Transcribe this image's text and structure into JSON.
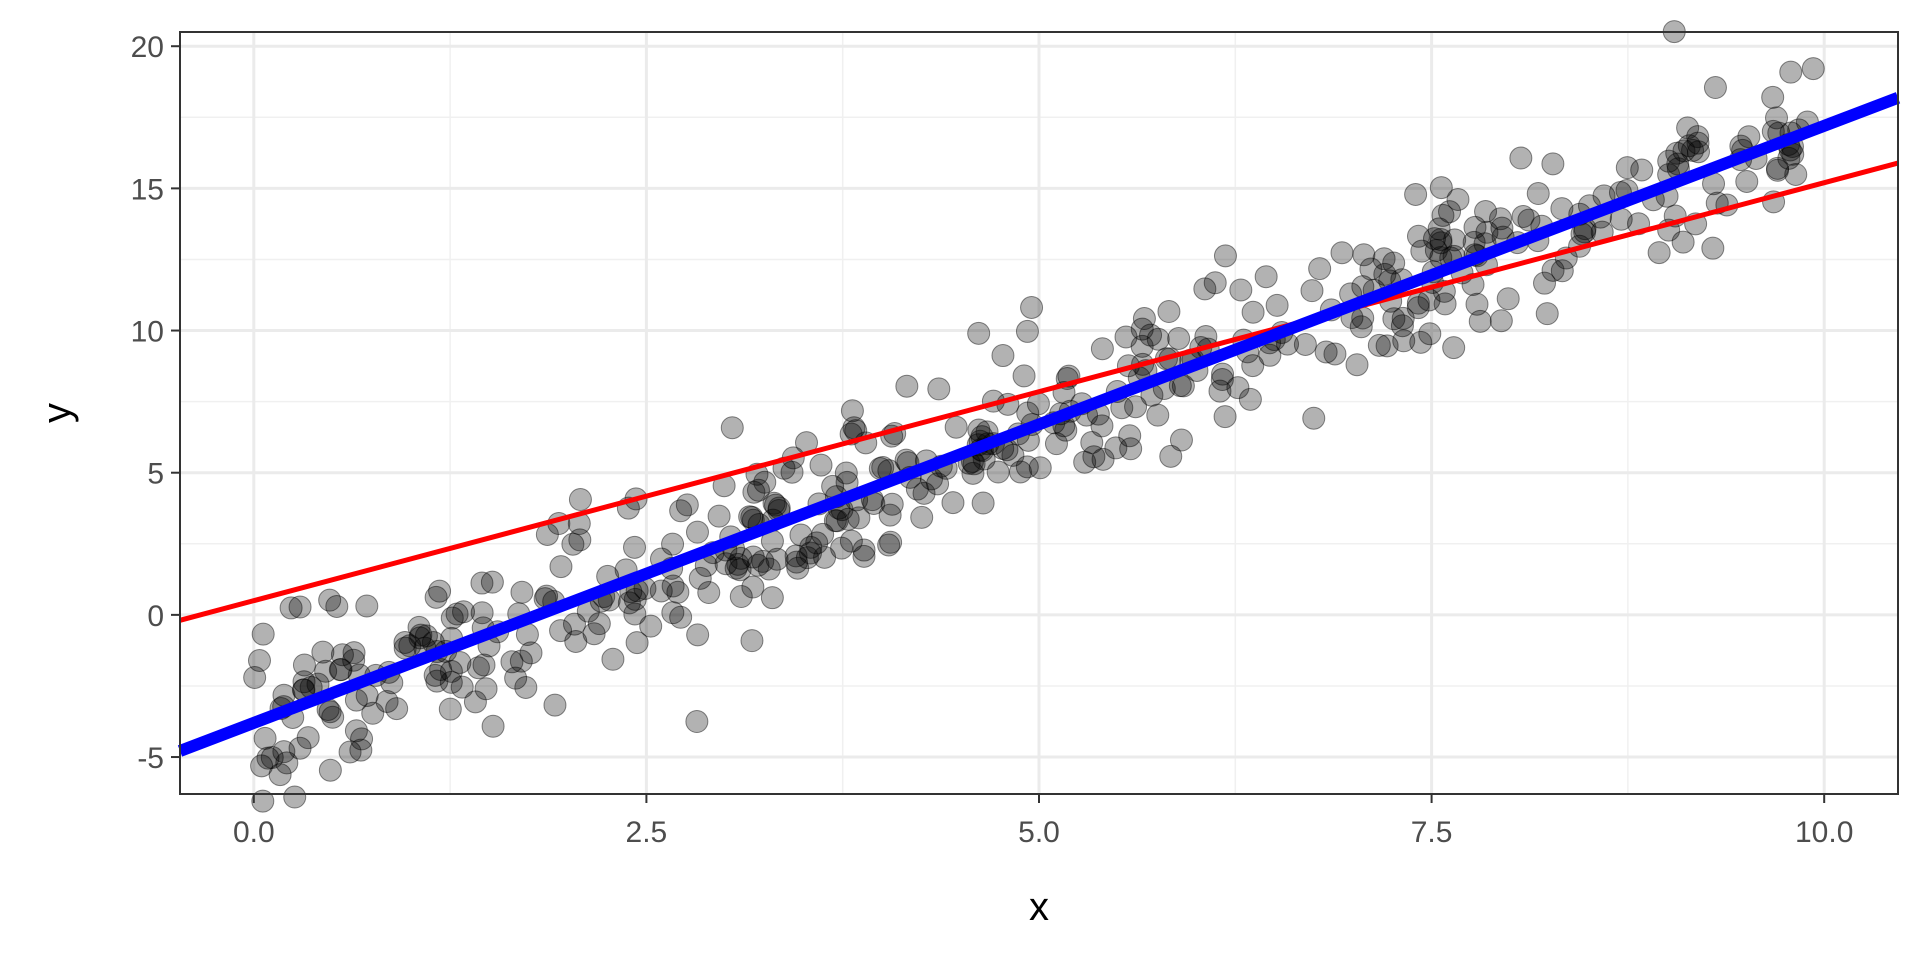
{
  "chart_data": {
    "type": "scatter",
    "title": "",
    "xlabel": "x",
    "ylabel": "y",
    "xlim": [
      -0.47,
      10.47
    ],
    "ylim": [
      -6.3,
      20.5
    ],
    "x_major_ticks": [
      0.0,
      2.5,
      5.0,
      7.5,
      10.0
    ],
    "x_tick_labels": [
      "0.0",
      "2.5",
      "5.0",
      "7.5",
      "10.0"
    ],
    "x_minor_ticks": [
      1.25,
      3.75,
      6.25,
      8.75
    ],
    "y_major_ticks": [
      -5,
      0,
      5,
      10,
      15,
      20
    ],
    "y_tick_labels": [
      "-5",
      "0",
      "5",
      "10",
      "15",
      "20"
    ],
    "y_minor_ticks": [
      -2.5,
      2.5,
      7.5,
      12.5,
      17.5
    ],
    "grid": true,
    "legend": "none",
    "points": {
      "color": "#000000",
      "opacity": 0.3,
      "n": 500,
      "noise_sd": 1.5
    },
    "lines": [
      {
        "color": "#0000ff",
        "intercept": -3.8,
        "slope": 2.1
      },
      {
        "color": "#ff0000",
        "intercept": 0.5,
        "slope": 1.47
      }
    ]
  }
}
